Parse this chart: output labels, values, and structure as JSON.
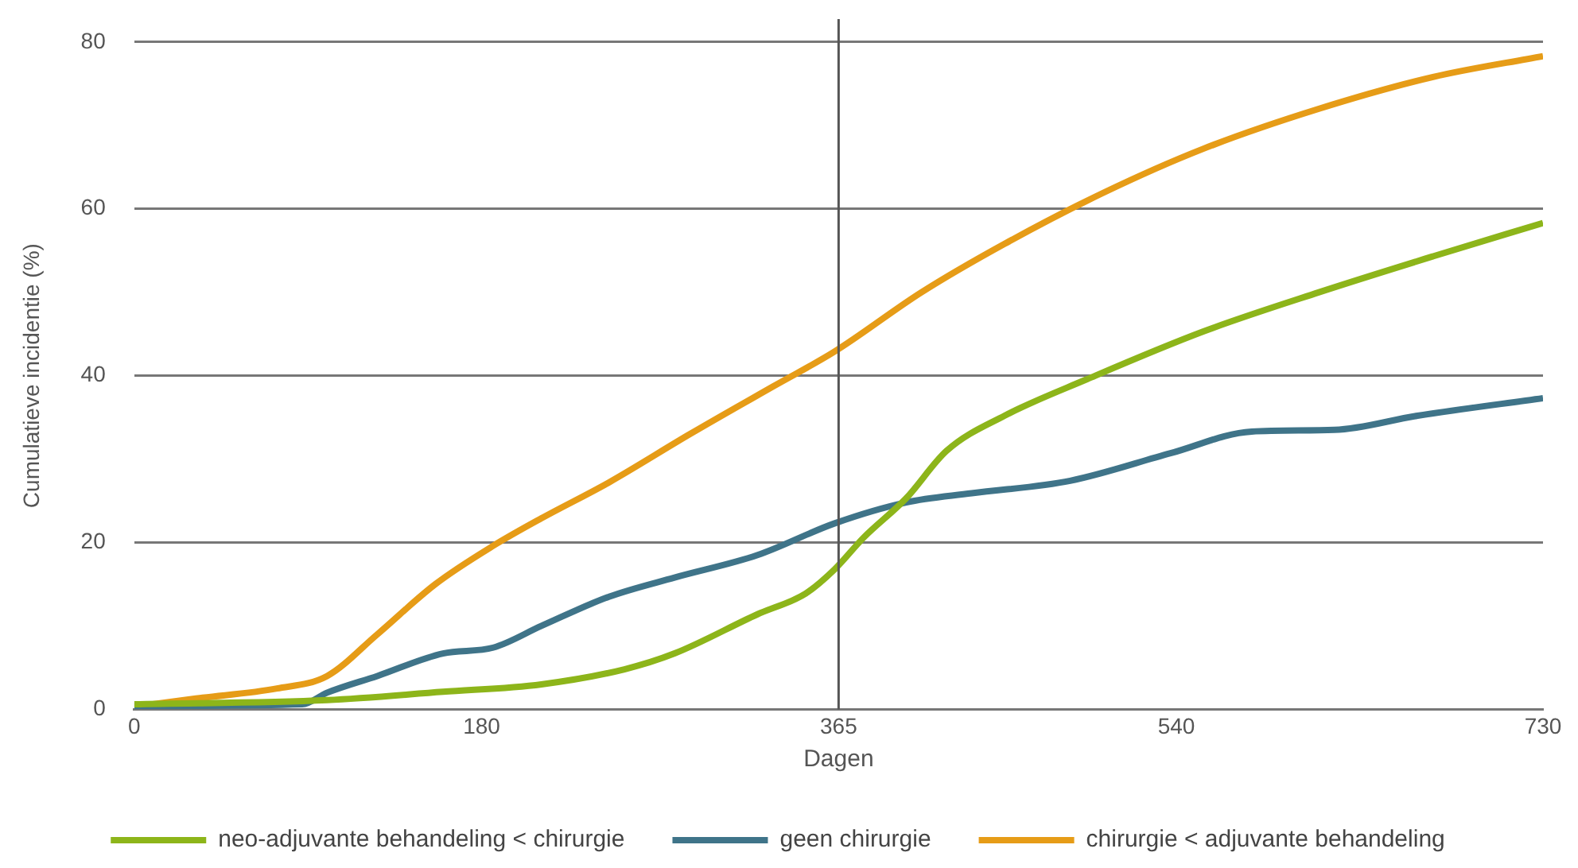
{
  "chart_data": {
    "type": "line",
    "xlabel": "Dagen",
    "ylabel": "Cumulatieve incidentie (%)",
    "xlim": [
      0,
      730
    ],
    "xticks": [
      0,
      180,
      365,
      540,
      730
    ],
    "ylim": [
      0,
      80
    ],
    "yticks": [
      0,
      20,
      40,
      60,
      80
    ],
    "grid": "y",
    "legend": "bottom",
    "marker": "none",
    "line_style": "solid",
    "ref_lines": [
      {
        "axis": "x",
        "value": 365,
        "color": "#555555"
      }
    ],
    "series": [
      {
        "name": "neo-adjuvante behandeling < chirurgie",
        "color": "#8db51a",
        "x": [
          0,
          100,
          160,
          211,
          254,
          280,
          323,
          348,
          363,
          378,
          400,
          421,
          451,
          494,
          554,
          614,
          673,
          730
        ],
        "values": [
          0.6,
          1.1,
          2.1,
          3,
          4.8,
          6.7,
          11.4,
          13.9,
          16.8,
          20.6,
          25.3,
          31,
          35.2,
          39.6,
          45.3,
          50,
          54.3,
          58.3
        ]
      },
      {
        "name": "geen chirurgie",
        "color": "#3f7489",
        "x": [
          0,
          87,
          100,
          126,
          160,
          186,
          211,
          246,
          280,
          323,
          363,
          400,
          434,
          485,
          537,
          579,
          622,
          665,
          730
        ],
        "values": [
          0.4,
          0.6,
          2,
          4,
          6.7,
          7.4,
          10,
          13.5,
          15.8,
          18.5,
          22.3,
          24.8,
          25.9,
          27.4,
          30.7,
          33.3,
          33.5,
          35.2,
          37.3
        ]
      },
      {
        "name": "chirurgie < adjuvante behandeling",
        "color": "#e69c17",
        "x": [
          3,
          32,
          74,
          100,
          126,
          156,
          186,
          211,
          246,
          288,
          331,
          363,
          408,
          451,
          502,
          554,
          614,
          673,
          730
        ],
        "values": [
          0.4,
          1.3,
          2.5,
          4,
          9,
          15,
          19.6,
          22.9,
          27.2,
          33,
          38.7,
          42.9,
          50,
          55.8,
          61.9,
          67.2,
          72,
          75.8,
          78.3
        ]
      }
    ]
  }
}
